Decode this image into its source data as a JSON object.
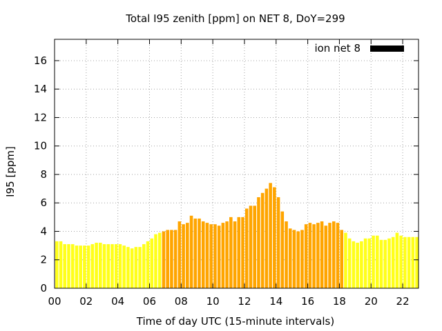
{
  "chart_data": {
    "type": "bar",
    "title": "Total I95 zenith [ppm] on NET 8, DoY=299",
    "xlabel": "Time of day UTC (15-minute intervals)",
    "ylabel": "I95 [ppm]",
    "xlim": [
      0,
      23
    ],
    "ylim": [
      0,
      17.5
    ],
    "xticks": [
      {
        "value": 0,
        "label": "00"
      },
      {
        "value": 2,
        "label": "02"
      },
      {
        "value": 4,
        "label": "04"
      },
      {
        "value": 6,
        "label": "06"
      },
      {
        "value": 8,
        "label": "08"
      },
      {
        "value": 10,
        "label": "10"
      },
      {
        "value": 12,
        "label": "12"
      },
      {
        "value": 14,
        "label": "14"
      },
      {
        "value": 16,
        "label": "16"
      },
      {
        "value": 18,
        "label": "18"
      },
      {
        "value": 20,
        "label": "20"
      },
      {
        "value": 22,
        "label": "22"
      }
    ],
    "yticks": [
      {
        "value": 0,
        "label": "0"
      },
      {
        "value": 2,
        "label": "2"
      },
      {
        "value": 4,
        "label": "4"
      },
      {
        "value": 6,
        "label": "6"
      },
      {
        "value": 8,
        "label": "8"
      },
      {
        "value": 10,
        "label": "10"
      },
      {
        "value": 12,
        "label": "12"
      },
      {
        "value": 14,
        "label": "14"
      },
      {
        "value": 16,
        "label": "16"
      }
    ],
    "grid": true,
    "legend": {
      "label": "ion net 8",
      "color": "#000000",
      "position": "top-right"
    },
    "colors": {
      "quiet": "#ffff1a",
      "active": "#ffa500",
      "axis": "#000000",
      "grid": "#a0a0a0"
    },
    "active_range_hours": [
      6.75,
      18.25
    ],
    "interval_hours": 0.25,
    "series": [
      {
        "name": "ion net 8",
        "values": [
          3.3,
          3.3,
          3.1,
          3.1,
          3.1,
          3.0,
          3.0,
          3.0,
          3.0,
          3.1,
          3.2,
          3.2,
          3.1,
          3.1,
          3.1,
          3.1,
          3.1,
          3.0,
          2.9,
          2.8,
          2.9,
          2.9,
          3.1,
          3.3,
          3.5,
          3.8,
          3.9,
          4.0,
          4.1,
          4.1,
          4.1,
          4.7,
          4.5,
          4.6,
          5.1,
          4.9,
          4.9,
          4.7,
          4.6,
          4.5,
          4.5,
          4.4,
          4.6,
          4.7,
          5.0,
          4.7,
          5.0,
          5.0,
          5.6,
          5.8,
          5.8,
          6.4,
          6.7,
          7.0,
          7.4,
          7.1,
          6.4,
          5.4,
          4.7,
          4.2,
          4.1,
          4.0,
          4.1,
          4.5,
          4.6,
          4.5,
          4.6,
          4.7,
          4.4,
          4.6,
          4.7,
          4.6,
          4.1,
          3.9,
          3.5,
          3.3,
          3.2,
          3.3,
          3.5,
          3.5,
          3.7,
          3.7,
          3.4,
          3.4,
          3.5,
          3.6,
          3.9,
          3.7,
          3.6,
          3.6,
          3.6,
          3.6
        ]
      }
    ]
  }
}
